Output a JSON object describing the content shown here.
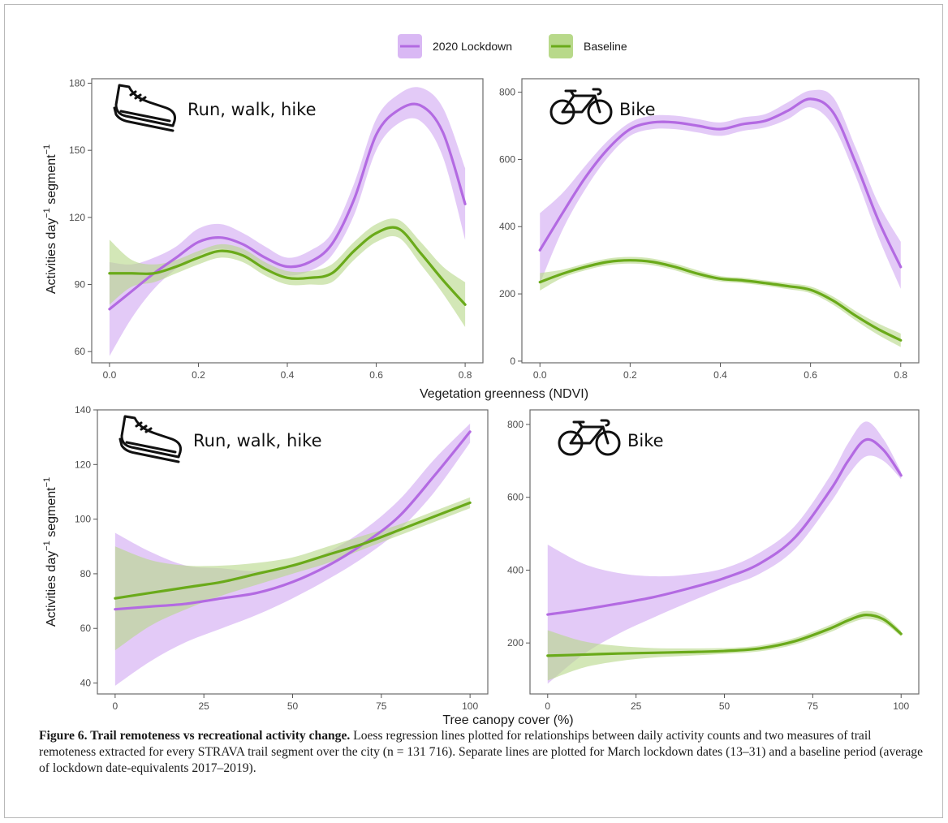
{
  "legend": {
    "items": [
      {
        "label": "2020 Lockdown",
        "color": "#b36ae2",
        "fill": "#d9b8f4"
      },
      {
        "label": "Baseline",
        "color": "#6aaa1a",
        "fill": "#b8d98a"
      }
    ]
  },
  "axes": {
    "shared_xlabel_top": "Vegetation greenness (NDVI)",
    "shared_xlabel_bottom": "Tree canopy cover (%)",
    "ylabel_main": "Activities day",
    "ylabel_sup1": "−1",
    "ylabel_mid": " segment",
    "ylabel_sup2": "−1"
  },
  "caption": {
    "title": "Figure 6. Trail remoteness vs recreational activity change.",
    "body": " Loess regression lines plotted for relationships between daily activity counts and two measures of trail remoteness extracted for every STRAVA trail segment over the city (n = 131 716). Separate lines are plotted for March lockdown dates (13–31) and a baseline period (average of lockdown date-equivalents 2017–2019)."
  },
  "chart_data": [
    {
      "type": "line",
      "title": "Run, walk, hike",
      "icon": "shoe-icon",
      "xlabel": "Vegetation greenness (NDVI)",
      "ylabel": "Activities day−1 segment−1",
      "xlim": [
        -0.04,
        0.84
      ],
      "ylim": [
        55,
        182
      ],
      "xticks": [
        0.0,
        0.2,
        0.4,
        0.6,
        0.8
      ],
      "xtick_labels": [
        "0.0",
        "0.2",
        "0.4",
        "0.6",
        "0.8"
      ],
      "yticks": [
        60,
        90,
        120,
        150,
        180
      ],
      "ytick_labels": [
        "60",
        "90",
        "120",
        "150",
        "180"
      ],
      "series": [
        {
          "name": "2020 Lockdown",
          "x": [
            0.0,
            0.05,
            0.1,
            0.15,
            0.2,
            0.25,
            0.3,
            0.35,
            0.4,
            0.45,
            0.5,
            0.55,
            0.6,
            0.65,
            0.7,
            0.75,
            0.8
          ],
          "y": [
            79,
            87,
            95,
            102,
            109,
            111,
            108,
            102,
            98,
            100,
            108,
            128,
            157,
            168,
            170,
            158,
            126
          ],
          "lower": [
            58,
            75,
            88,
            97,
            103,
            106,
            103,
            97,
            94,
            96,
            103,
            121,
            150,
            162,
            163,
            147,
            110
          ],
          "upper": [
            100,
            99,
            102,
            107,
            115,
            117,
            113,
            107,
            102,
            105,
            113,
            135,
            164,
            175,
            178,
            169,
            142
          ]
        },
        {
          "name": "Baseline",
          "x": [
            0.0,
            0.05,
            0.1,
            0.15,
            0.2,
            0.25,
            0.3,
            0.35,
            0.4,
            0.45,
            0.5,
            0.55,
            0.6,
            0.65,
            0.7,
            0.75,
            0.8
          ],
          "y": [
            95,
            95,
            95,
            98,
            102,
            105,
            103,
            97,
            93,
            93,
            95,
            105,
            113,
            115,
            104,
            92,
            81
          ],
          "lower": [
            81,
            89,
            91,
            95,
            99,
            102,
            100,
            94,
            90,
            90,
            91,
            101,
            109,
            111,
            99,
            86,
            71
          ],
          "upper": [
            110,
            101,
            99,
            101,
            105,
            108,
            106,
            100,
            96,
            96,
            99,
            109,
            117,
            119,
            109,
            98,
            91
          ]
        }
      ]
    },
    {
      "type": "line",
      "title": "Bike",
      "icon": "bicycle-icon",
      "xlabel": "Vegetation greenness (NDVI)",
      "ylabel": "",
      "xlim": [
        -0.04,
        0.84
      ],
      "ylim": [
        -5,
        840
      ],
      "xticks": [
        0.0,
        0.2,
        0.4,
        0.6,
        0.8
      ],
      "xtick_labels": [
        "0.0",
        "0.2",
        "0.4",
        "0.6",
        "0.8"
      ],
      "yticks": [
        0,
        200,
        400,
        600,
        800
      ],
      "ytick_labels": [
        "0",
        "200",
        "400",
        "600",
        "800"
      ],
      "series": [
        {
          "name": "2020 Lockdown",
          "x": [
            0.0,
            0.05,
            0.1,
            0.15,
            0.2,
            0.25,
            0.3,
            0.35,
            0.4,
            0.45,
            0.5,
            0.55,
            0.6,
            0.65,
            0.7,
            0.75,
            0.8
          ],
          "y": [
            330,
            440,
            545,
            630,
            690,
            710,
            710,
            700,
            690,
            705,
            715,
            745,
            780,
            740,
            590,
            420,
            280
          ],
          "lower": [
            230,
            390,
            510,
            605,
            670,
            690,
            690,
            680,
            670,
            685,
            695,
            720,
            755,
            700,
            550,
            370,
            215
          ],
          "upper": [
            440,
            500,
            580,
            655,
            710,
            730,
            730,
            720,
            710,
            725,
            735,
            770,
            805,
            785,
            635,
            470,
            355
          ]
        },
        {
          "name": "Baseline",
          "x": [
            0.0,
            0.05,
            0.1,
            0.15,
            0.2,
            0.25,
            0.3,
            0.35,
            0.4,
            0.45,
            0.5,
            0.55,
            0.6,
            0.65,
            0.7,
            0.75,
            0.8
          ],
          "y": [
            235,
            260,
            280,
            295,
            300,
            295,
            280,
            260,
            245,
            240,
            232,
            223,
            212,
            180,
            135,
            95,
            62
          ],
          "lower": [
            210,
            248,
            270,
            285,
            290,
            285,
            270,
            250,
            237,
            232,
            224,
            214,
            202,
            168,
            121,
            78,
            42
          ],
          "upper": [
            262,
            272,
            290,
            305,
            310,
            305,
            290,
            270,
            253,
            248,
            240,
            232,
            222,
            192,
            149,
            112,
            82
          ]
        }
      ]
    },
    {
      "type": "line",
      "title": "Run, walk, hike",
      "icon": "shoe-icon",
      "xlabel": "Tree canopy cover (%)",
      "ylabel": "Activities day−1 segment−1",
      "xlim": [
        -5,
        105
      ],
      "ylim": [
        36,
        140
      ],
      "xticks": [
        0,
        25,
        50,
        75,
        100
      ],
      "xtick_labels": [
        "0",
        "25",
        "50",
        "75",
        "100"
      ],
      "yticks": [
        40,
        60,
        80,
        100,
        120,
        140
      ],
      "ytick_labels": [
        "40",
        "60",
        "80",
        "100",
        "120",
        "140"
      ],
      "series": [
        {
          "name": "2020 Lockdown",
          "x": [
            0,
            10,
            20,
            30,
            40,
            50,
            60,
            70,
            80,
            90,
            100
          ],
          "y": [
            67,
            68,
            69,
            71,
            73,
            77,
            83,
            91,
            101,
            116,
            132
          ],
          "lower": [
            39,
            48,
            55,
            60,
            65,
            71,
            78,
            86,
            96,
            110,
            128
          ],
          "upper": [
            95,
            88,
            83,
            82,
            81,
            83,
            88,
            96,
            107,
            122,
            135
          ]
        },
        {
          "name": "Baseline",
          "x": [
            0,
            10,
            20,
            30,
            40,
            50,
            60,
            70,
            80,
            90,
            100
          ],
          "y": [
            71,
            73,
            75,
            77,
            80,
            83,
            87,
            91,
            96,
            101,
            106
          ],
          "lower": [
            52,
            61,
            67,
            72,
            76,
            80,
            84,
            89,
            94,
            99,
            104
          ],
          "upper": [
            90,
            85,
            83,
            83,
            84,
            86,
            90,
            94,
            98,
            103,
            108
          ]
        }
      ]
    },
    {
      "type": "line",
      "title": "Bike",
      "icon": "bicycle-icon",
      "xlabel": "Tree canopy cover (%)",
      "ylabel": "",
      "xlim": [
        -5,
        105
      ],
      "ylim": [
        60,
        840
      ],
      "xticks": [
        0,
        25,
        50,
        75,
        100
      ],
      "xtick_labels": [
        "0",
        "25",
        "50",
        "75",
        "100"
      ],
      "yticks": [
        200,
        400,
        600,
        800
      ],
      "ytick_labels": [
        "200",
        "400",
        "600",
        "800"
      ],
      "series": [
        {
          "name": "2020 Lockdown",
          "x": [
            0,
            10,
            20,
            30,
            40,
            50,
            60,
            70,
            80,
            85,
            90,
            95,
            100
          ],
          "y": [
            278,
            292,
            308,
            326,
            350,
            378,
            418,
            490,
            620,
            700,
            758,
            730,
            660
          ],
          "lower": [
            88,
            168,
            225,
            270,
            312,
            352,
            390,
            458,
            585,
            660,
            712,
            700,
            650
          ],
          "upper": [
            470,
            418,
            392,
            383,
            388,
            405,
            448,
            522,
            660,
            748,
            808,
            760,
            670
          ]
        },
        {
          "name": "Baseline",
          "x": [
            0,
            10,
            20,
            30,
            40,
            50,
            60,
            70,
            80,
            85,
            90,
            95,
            100
          ],
          "y": [
            165,
            168,
            171,
            173,
            175,
            178,
            185,
            205,
            240,
            262,
            277,
            265,
            225
          ],
          "lower": [
            97,
            132,
            150,
            160,
            165,
            170,
            177,
            196,
            230,
            252,
            266,
            255,
            218
          ],
          "upper": [
            235,
            205,
            192,
            186,
            185,
            186,
            193,
            214,
            250,
            272,
            288,
            276,
            233
          ]
        }
      ]
    }
  ]
}
